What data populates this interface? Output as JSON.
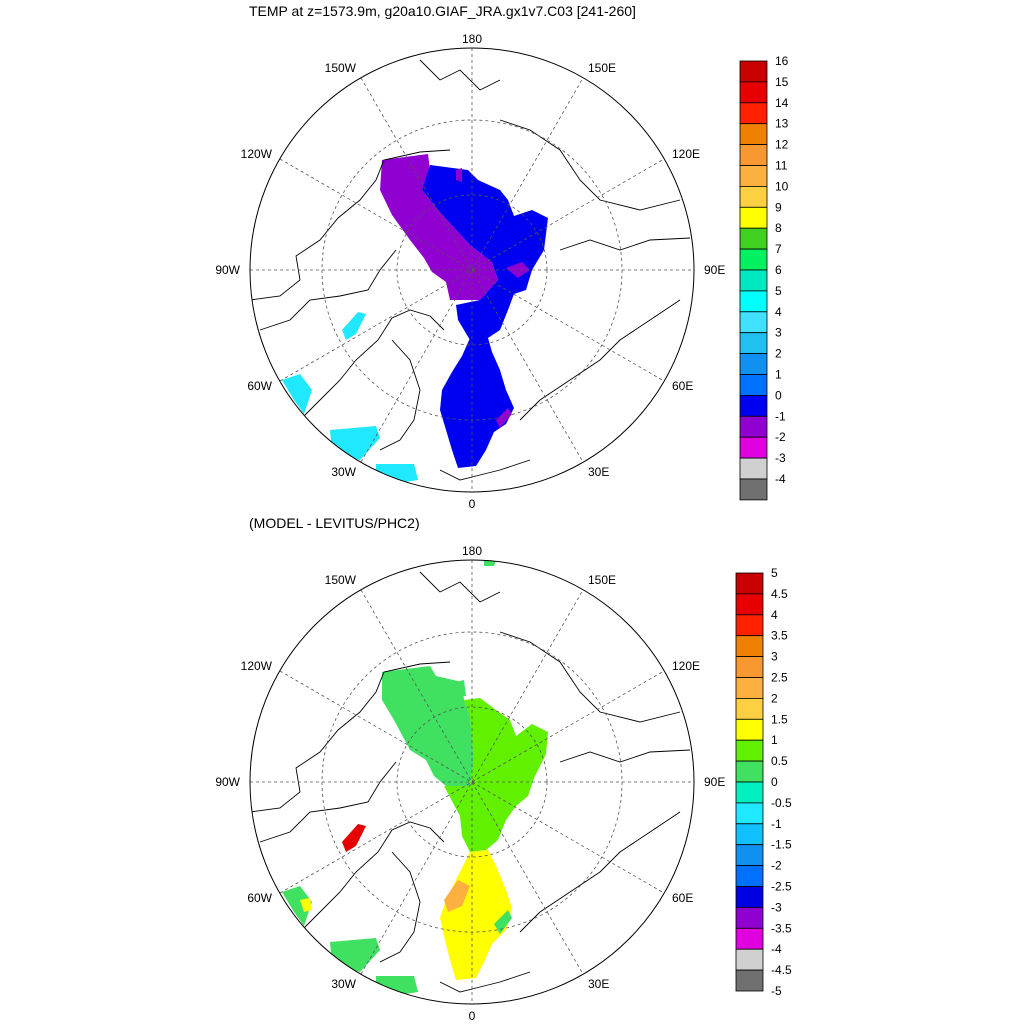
{
  "panels": [
    {
      "title": "TEMP at z=1573.9m, g20a10.GIAF_JRA.gx1v7.C03 [241-260]",
      "colorbar": {
        "labels": [
          "16",
          "15",
          "14",
          "13",
          "12",
          "11",
          "10",
          "9",
          "8",
          "7",
          "6",
          "5",
          "4",
          "3",
          "2",
          "1",
          "0",
          "-1",
          "-2",
          "-3",
          "-4"
        ],
        "colors": [
          "#c80000",
          "#e60000",
          "#ff2000",
          "#f08000",
          "#f89830",
          "#fcb040",
          "#fcd040",
          "#ffff00",
          "#40d020",
          "#00f060",
          "#00e8c0",
          "#00ffff",
          "#40e0ff",
          "#20c0f0",
          "#1090f0",
          "#0070ff",
          "#0000f0",
          "#9000d0",
          "#e000e0",
          "#d0d0d0",
          "#707070"
        ]
      },
      "meridian_labels": {
        "n": "180",
        "s": "0",
        "w": "90W",
        "e": "90E",
        "nw1": "150W",
        "nw2": "120W",
        "sw1": "60W",
        "sw2": "30W",
        "ne1": "150E",
        "ne2": "120E",
        "se1": "60E",
        "se2": "30E"
      }
    },
    {
      "title": "(MODEL - LEVITUS/PHC2)",
      "colorbar": {
        "labels": [
          "5",
          "4.5",
          "4",
          "3.5",
          "3",
          "2.5",
          "2",
          "1.5",
          "1",
          "0.5",
          "0",
          "-0.5",
          "-1",
          "-1.5",
          "-2",
          "-2.5",
          "-3",
          "-3.5",
          "-4",
          "-4.5",
          "-5"
        ],
        "colors": [
          "#c80000",
          "#e60000",
          "#ff2000",
          "#f08000",
          "#f89830",
          "#fcb040",
          "#fcd040",
          "#ffff00",
          "#60f000",
          "#40e060",
          "#00f0c0",
          "#20e8ff",
          "#10c0ff",
          "#1090f0",
          "#0070ff",
          "#0000e0",
          "#9000d0",
          "#e000e0",
          "#d0d0d0",
          "#707070"
        ]
      },
      "meridian_labels": {
        "n": "180",
        "s": "0",
        "w": "90W",
        "e": "90E",
        "nw1": "150W",
        "nw2": "120W",
        "sw1": "60W",
        "sw2": "30W",
        "ne1": "150E",
        "ne2": "120E",
        "se1": "60E",
        "se2": "30E"
      }
    }
  ]
}
